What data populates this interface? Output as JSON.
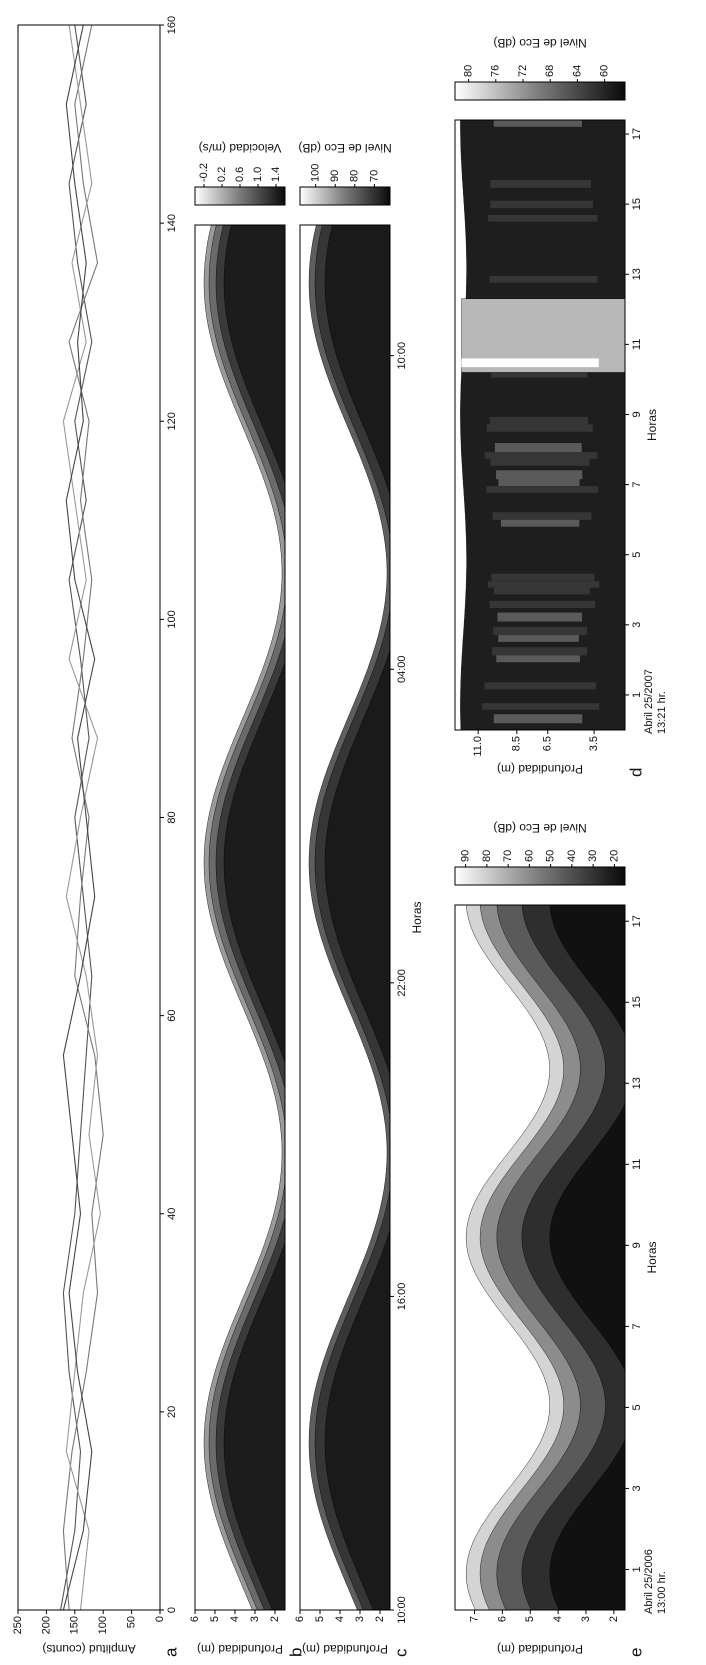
{
  "chart_data": [
    {
      "panel": "a",
      "type": "line",
      "ylabel": "Amplitud (counts)",
      "x": [
        0,
        8,
        16,
        24,
        32,
        40,
        48,
        56,
        64,
        72,
        80,
        88,
        96,
        104,
        112,
        120,
        128,
        136,
        144,
        152,
        160
      ],
      "series": [
        {
          "color": "#555555",
          "values": [
            175,
            150,
            140,
            160,
            170,
            150,
            140,
            130,
            120,
            135,
            150,
            125,
            140,
            160,
            130,
            150,
            120,
            145,
            160,
            130,
            150
          ]
        },
        {
          "color": "#777777",
          "values": [
            160,
            170,
            155,
            130,
            110,
            120,
            100,
            115,
            150,
            140,
            125,
            155,
            135,
            120,
            140,
            125,
            160,
            110,
            135,
            150,
            120
          ]
        },
        {
          "color": "#999999",
          "values": [
            140,
            125,
            165,
            150,
            135,
            105,
            125,
            110,
            130,
            165,
            140,
            110,
            160,
            130,
            150,
            170,
            130,
            155,
            120,
            140,
            160
          ]
        },
        {
          "color": "#444444",
          "values": [
            170,
            135,
            120,
            145,
            160,
            140,
            155,
            170,
            140,
            115,
            130,
            145,
            115,
            150,
            165,
            135,
            145,
            130,
            150,
            165,
            135
          ]
        }
      ],
      "xlim": [
        0,
        160
      ],
      "xticks": [
        0,
        20,
        40,
        60,
        80,
        100,
        120,
        140,
        160
      ],
      "ylim": [
        0,
        250
      ],
      "yticks": [
        0,
        50,
        100,
        150,
        200,
        250
      ]
    },
    {
      "panel": "b",
      "type": "contour",
      "ylabel": "Profundidad (m)",
      "xlim": [
        0,
        26.5
      ],
      "ylim": [
        1.5,
        6
      ],
      "yticks": [
        2,
        3,
        4,
        5,
        6
      ],
      "colorbar": {
        "label": "Velocidad (m/s)",
        "lim": [
          -0.4,
          1.6
        ],
        "ticks": [
          -0.2,
          0.2,
          0.6,
          {
            "value": 1,
            "label": "1.0"
          },
          1.4
        ]
      }
    },
    {
      "panel": "c",
      "type": "contour",
      "ylabel": "Profundidad (m)",
      "xlabel": "Horas",
      "xlim": [
        0,
        26.5
      ],
      "xticks": [
        {
          "value": 0,
          "label": "10:00"
        },
        {
          "value": 6,
          "label": "16:00"
        },
        {
          "value": 12,
          "label": "22:00"
        },
        {
          "value": 18,
          "label": "04:00"
        },
        {
          "value": 24,
          "label": "10:00"
        }
      ],
      "ylim": [
        1.5,
        6
      ],
      "yticks": [
        2,
        3,
        4,
        5,
        6
      ],
      "colorbar": {
        "label": "Nivel de Eco (dB)",
        "lim": [
          108,
          62
        ],
        "ticks": [
          70,
          80,
          90,
          100
        ]
      }
    },
    {
      "panel": "d",
      "type": "contour",
      "ylabel": "Profundidad (m)",
      "xlabel": "Horas",
      "xlim": [
        0,
        17.4
      ],
      "xticks": [
        1,
        3,
        5,
        7,
        9,
        11,
        13,
        15,
        17
      ],
      "ylim": [
        1.5,
        12.5
      ],
      "yticks": [
        3.5,
        6.5,
        8.5,
        {
          "value": 11,
          "label": "11.0"
        }
      ],
      "date": [
        "Abril 25/2007",
        "13:21 hr."
      ],
      "colorbar": {
        "label": "Nivel de Eco (dB)",
        "lim": [
          82,
          57
        ],
        "ticks": [
          60,
          64,
          68,
          72,
          76,
          80
        ]
      }
    },
    {
      "panel": "e",
      "type": "contour",
      "ylabel": "Profundidad (m)",
      "xlabel": "Horas",
      "xlim": [
        0,
        17.4
      ],
      "xticks": [
        1,
        3,
        5,
        7,
        9,
        11,
        13,
        15,
        17
      ],
      "ylim": [
        1.6,
        7.7
      ],
      "yticks": [
        2,
        3,
        4,
        5,
        6,
        7
      ],
      "date": [
        "Abril 25/2006",
        "13:00 hr."
      ],
      "colorbar": {
        "label": "Nivel de Eco (dB)",
        "lim": [
          95,
          15
        ],
        "ticks": [
          20,
          30,
          40,
          50,
          60,
          70,
          80,
          90
        ]
      }
    }
  ]
}
